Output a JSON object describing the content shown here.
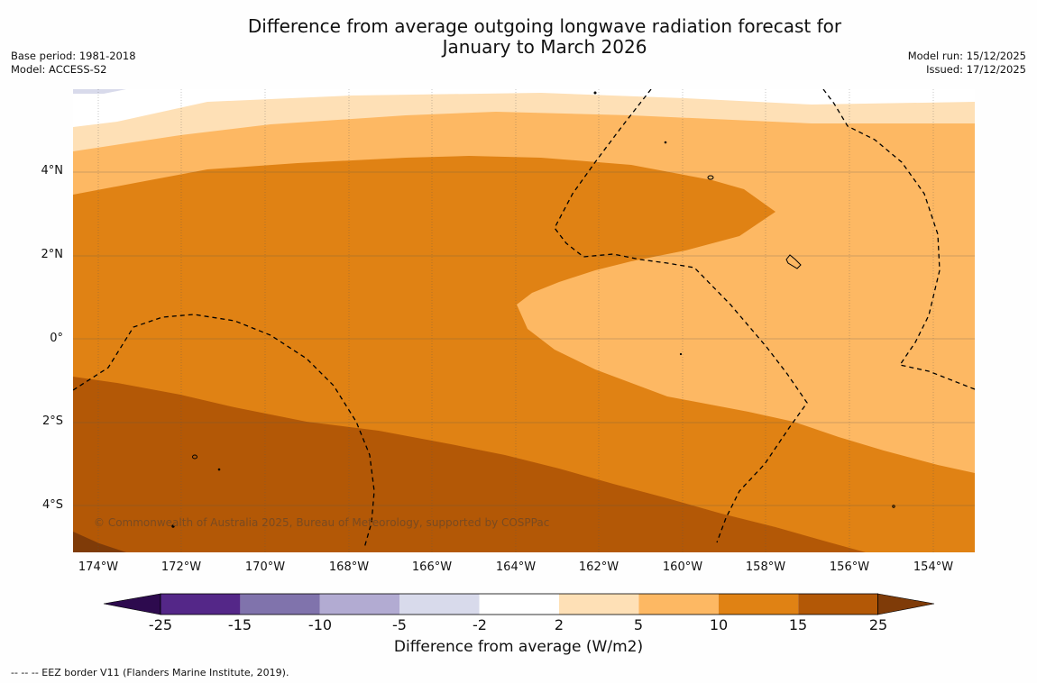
{
  "title": {
    "line1": "Difference from average outgoing longwave radiation forecast for",
    "line2": "January to March 2026"
  },
  "meta": {
    "base_period": "Base period: 1981-2018",
    "model": "Model: ACCESS-S2",
    "model_run": "Model run: 15/12/2025",
    "issued": "Issued: 17/12/2025"
  },
  "map": {
    "copyright": "© Commonwealth of Australia 2025, Bureau of Meteorology, supported by COSPPac",
    "x_ticks": [
      "174°W",
      "172°W",
      "170°W",
      "168°W",
      "166°W",
      "164°W",
      "162°W",
      "160°W",
      "158°W",
      "156°W",
      "154°W"
    ],
    "y_ticks": [
      "4°N",
      "2°N",
      "0°",
      "2°S",
      "4°S"
    ]
  },
  "colorbar": {
    "label": "Difference from average (W/m2)",
    "ticks": [
      "-25",
      "-15",
      "-10",
      "-5",
      "-2",
      "2",
      "5",
      "10",
      "15",
      "25"
    ],
    "colors": {
      "below_-25": "#2d0a4e",
      "-25_-15": "#542788",
      "-15_-10": "#8073ac",
      "-10_-5": "#b2abd2",
      "-5_-2": "#d8daeb",
      "-2_2": "#ffffff",
      "2_5": "#fee0b6",
      "5_10": "#fdb863",
      "10_15": "#e08214",
      "15_25": "#b35806",
      "above_25": "#7f3b08"
    }
  },
  "footnote": "--  --  -- EEZ border V11 (Flanders Marine Institute, 2019)."
}
